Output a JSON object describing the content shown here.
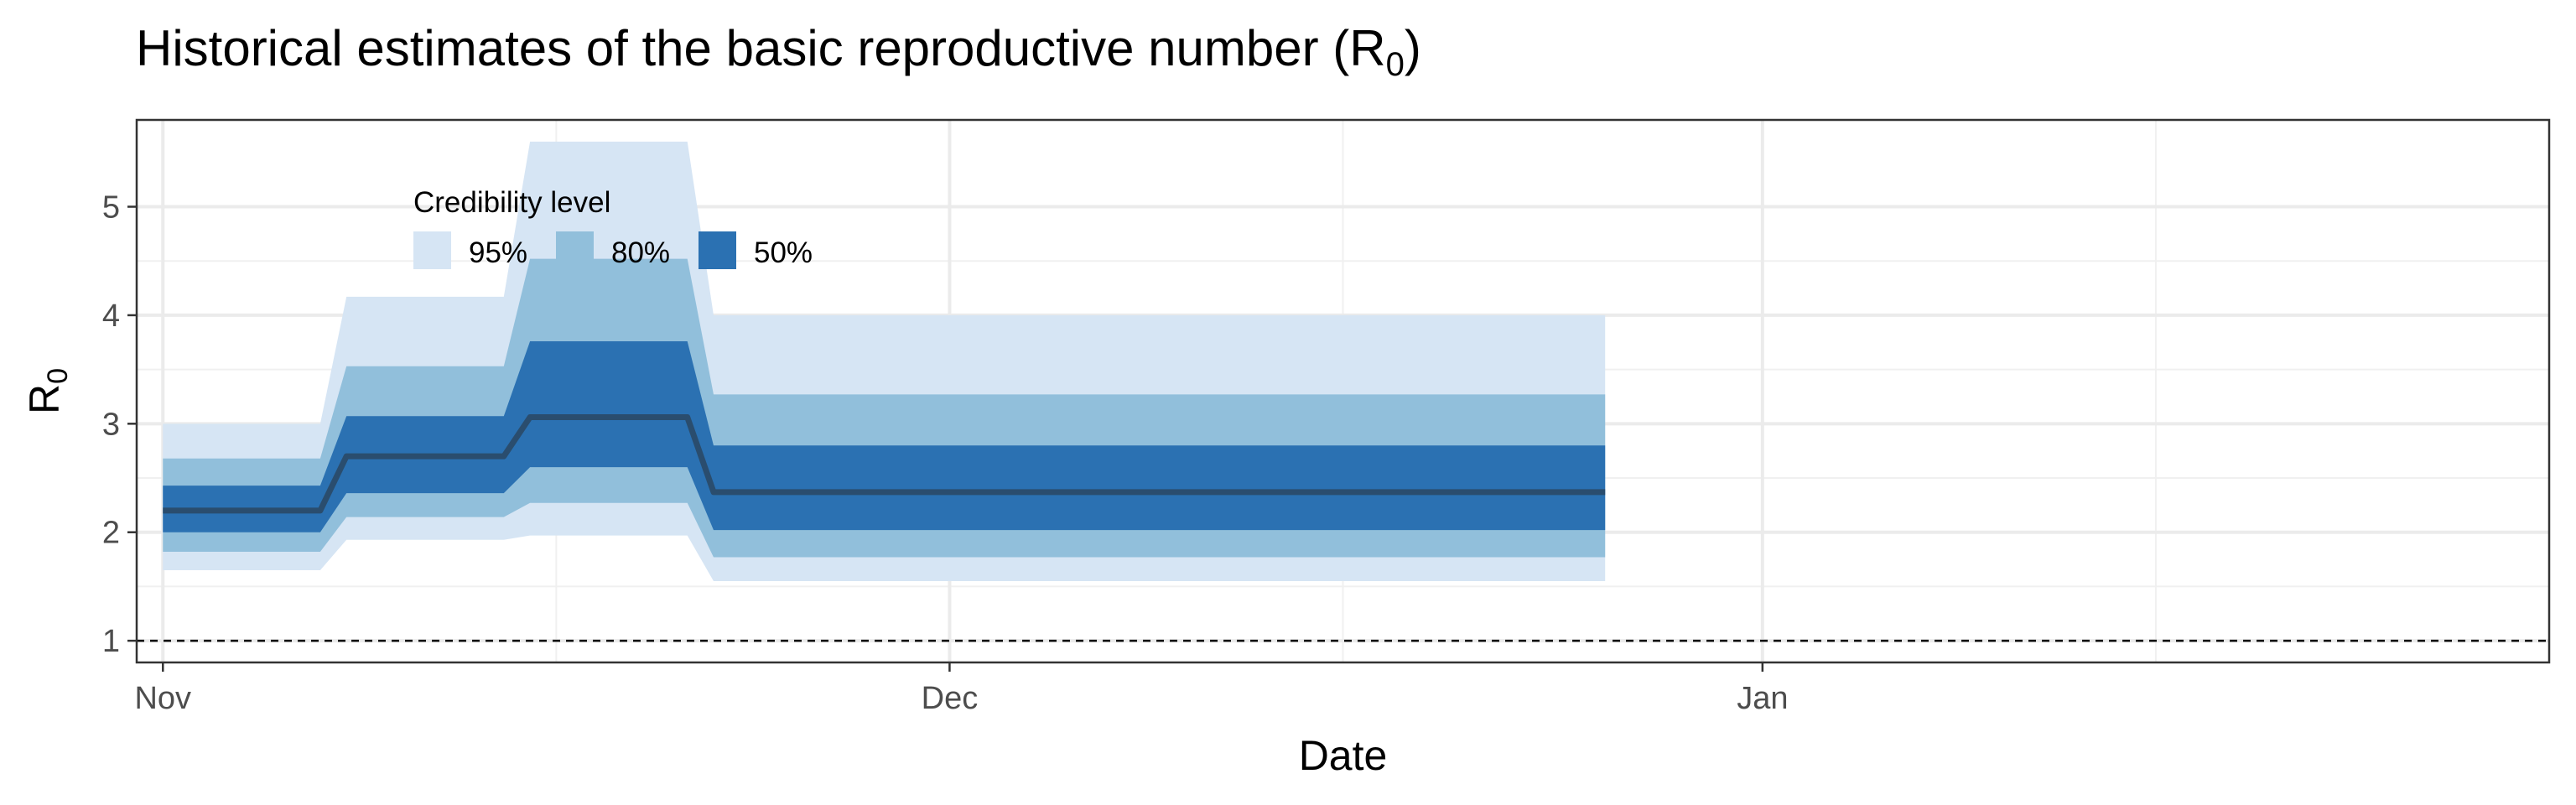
{
  "chart_data": {
    "type": "area",
    "title": "Historical estimates of the basic reproductive number (R",
    "title_subscript": "0",
    "title_suffix": ")",
    "xlabel": "Date",
    "ylabel": "R",
    "ylabel_subscript": "0",
    "xlim": [
      "2020-10-31",
      "2021-01-31"
    ],
    "ylim": [
      0.8,
      5.8
    ],
    "x_ticks": [
      {
        "date": "2020-11-01",
        "label": "Nov"
      },
      {
        "date": "2020-12-01",
        "label": "Dec"
      },
      {
        "date": "2021-01-01",
        "label": "Jan"
      }
    ],
    "y_ticks": [
      1,
      2,
      3,
      4,
      5
    ],
    "grid": true,
    "reference_line": {
      "y": 1,
      "style": "dashed"
    },
    "legend": {
      "title": "Credibility level",
      "position": "top-left",
      "items": [
        {
          "label": "95%",
          "color": "#d6e5f4"
        },
        {
          "label": "80%",
          "color": "#91bfdb"
        },
        {
          "label": "50%",
          "color": "#2b71b2"
        }
      ]
    },
    "x": [
      "2020-11-01",
      "2020-11-07",
      "2020-11-08",
      "2020-11-14",
      "2020-11-15",
      "2020-11-21",
      "2020-11-22",
      "2020-12-26"
    ],
    "median": [
      2.2,
      2.2,
      2.7,
      2.7,
      3.06,
      3.06,
      2.37,
      2.37
    ],
    "bands": [
      {
        "name": "95%",
        "color": "#d6e5f4",
        "lower": [
          1.65,
          1.65,
          1.93,
          1.93,
          1.97,
          1.97,
          1.55,
          1.55
        ],
        "upper": [
          3.0,
          3.0,
          4.17,
          4.17,
          5.6,
          5.6,
          4.0,
          4.0
        ]
      },
      {
        "name": "80%",
        "color": "#91bfdb",
        "lower": [
          1.82,
          1.82,
          2.14,
          2.14,
          2.27,
          2.27,
          1.77,
          1.77
        ],
        "upper": [
          2.68,
          2.68,
          3.53,
          3.53,
          4.52,
          4.52,
          3.27,
          3.27
        ]
      },
      {
        "name": "50%",
        "color": "#2b71b2",
        "lower": [
          2.0,
          2.0,
          2.36,
          2.36,
          2.6,
          2.6,
          2.02,
          2.02
        ],
        "upper": [
          2.43,
          2.43,
          3.07,
          3.07,
          3.76,
          3.76,
          2.8,
          2.8
        ]
      }
    ],
    "median_color": "#2a4d6e"
  }
}
